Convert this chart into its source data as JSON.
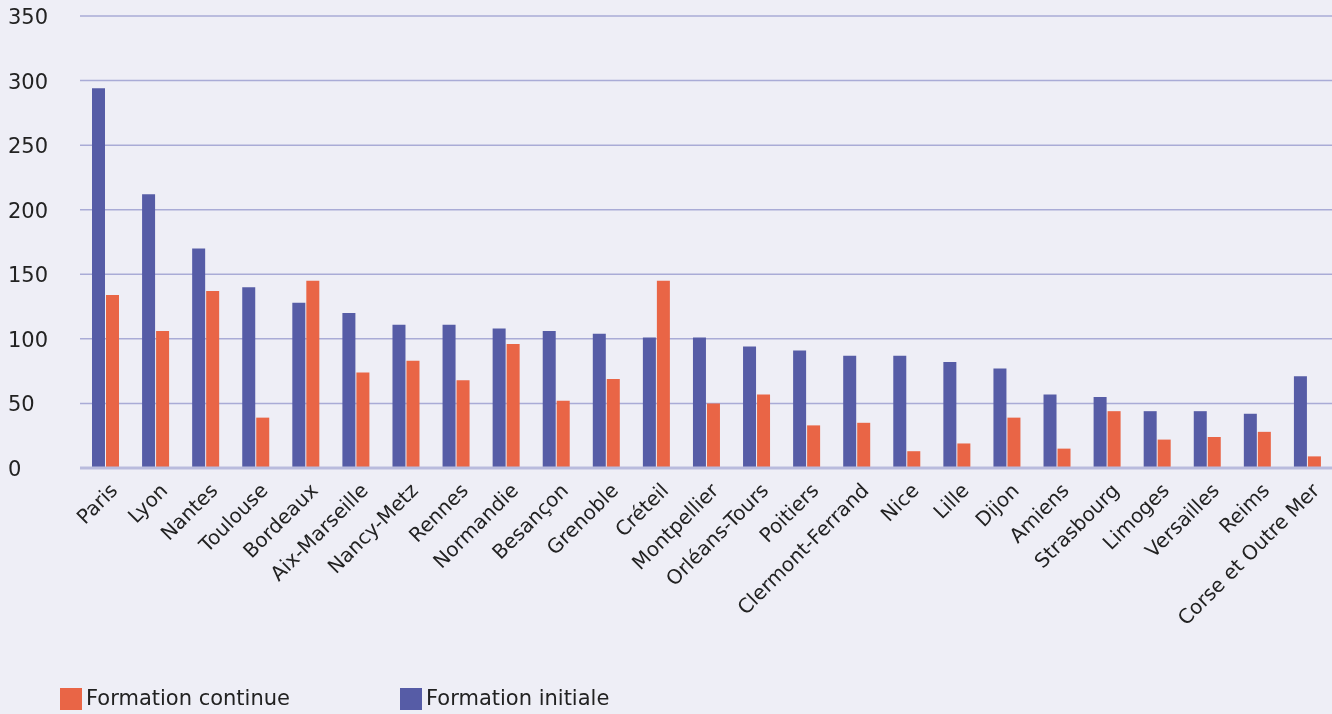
{
  "chart_data": {
    "type": "bar",
    "categories": [
      "Paris",
      "Lyon",
      "Nantes",
      "Toulouse",
      "Bordeaux",
      "Aix-Marseille",
      "Nancy-Metz",
      "Rennes",
      "Normandie",
      "Besançon",
      "Grenoble",
      "Créteil",
      "Montpellier",
      "Orléans-Tours",
      "Poitiers",
      "Clermont-Ferrand",
      "Nice",
      "Lille",
      "Dijon",
      "Amiens",
      "Strasbourg",
      "Limoges",
      "Versailles",
      "Reims",
      "Corse et Outre Mer"
    ],
    "series": [
      {
        "name": "Formation initiale",
        "color": "#565ca6",
        "values": [
          294,
          212,
          170,
          140,
          128,
          120,
          111,
          111,
          108,
          106,
          104,
          101,
          101,
          94,
          91,
          87,
          87,
          82,
          77,
          57,
          55,
          44,
          44,
          42,
          71
        ]
      },
      {
        "name": "Formation continue",
        "color": "#e96546",
        "values": [
          134,
          106,
          137,
          39,
          145,
          74,
          83,
          68,
          96,
          52,
          69,
          145,
          50,
          57,
          33,
          35,
          13,
          19,
          39,
          15,
          44,
          22,
          24,
          28,
          9
        ]
      }
    ],
    "ylim": [
      0,
      350
    ],
    "yticks": [
      0,
      50,
      100,
      150,
      200,
      250,
      300,
      350
    ],
    "grid": "y",
    "legend": "bottom left"
  }
}
